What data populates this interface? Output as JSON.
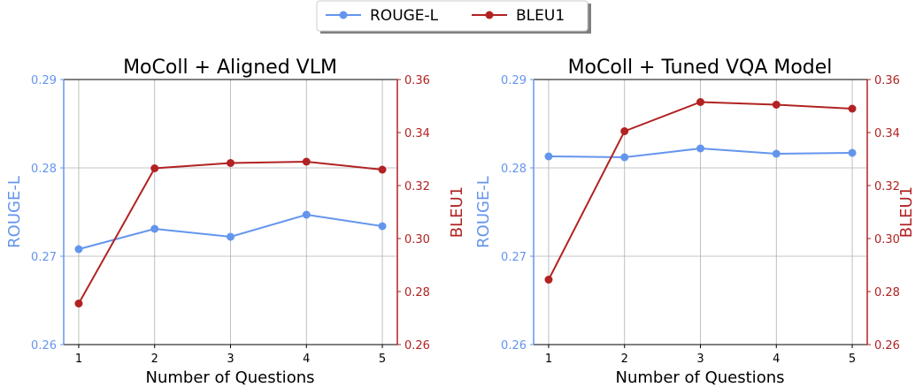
{
  "legend": {
    "entries": [
      {
        "label": "ROUGE-L",
        "color": "#6495ED"
      },
      {
        "label": "BLEU1",
        "color": "#B22222"
      }
    ]
  },
  "colors": {
    "rouge": "#6495ED",
    "bleu": "#B22222",
    "grid": "#b0b0b0"
  },
  "chart_data": [
    {
      "type": "line",
      "title": "MoColl + Aligned VLM",
      "xlabel": "Number of Questions",
      "ylabel_left": "ROUGE-L",
      "ylabel_right": "BLEU1",
      "x": [
        1,
        2,
        3,
        4,
        5
      ],
      "xticks": [
        "1",
        "2",
        "3",
        "4",
        "5"
      ],
      "ylim_left": [
        0.26,
        0.29
      ],
      "yticks_left": [
        "0.26",
        "0.27",
        "0.28",
        "0.29"
      ],
      "ylim_right": [
        0.26,
        0.36
      ],
      "yticks_right": [
        "0.26",
        "0.28",
        "0.30",
        "0.32",
        "0.34",
        "0.36"
      ],
      "grid": true,
      "series": [
        {
          "name": "ROUGE-L",
          "axis": "left",
          "values": [
            0.2708,
            0.2731,
            0.2722,
            0.2747,
            0.2734
          ]
        },
        {
          "name": "BLEU1",
          "axis": "right",
          "values": [
            0.2755,
            0.3265,
            0.3285,
            0.329,
            0.326
          ]
        }
      ]
    },
    {
      "type": "line",
      "title": "MoColl + Tuned VQA Model",
      "xlabel": "Number of Questions",
      "ylabel_left": "ROUGE-L",
      "ylabel_right": "BLEU1",
      "x": [
        1,
        2,
        3,
        4,
        5
      ],
      "xticks": [
        "1",
        "2",
        "3",
        "4",
        "5"
      ],
      "ylim_left": [
        0.26,
        0.29
      ],
      "yticks_left": [
        "0.26",
        "0.27",
        "0.28",
        "0.29"
      ],
      "ylim_right": [
        0.26,
        0.36
      ],
      "yticks_right": [
        "0.26",
        "0.28",
        "0.30",
        "0.32",
        "0.34",
        "0.36"
      ],
      "grid": true,
      "series": [
        {
          "name": "ROUGE-L",
          "axis": "left",
          "values": [
            0.2813,
            0.2812,
            0.2822,
            0.2816,
            0.2817
          ]
        },
        {
          "name": "BLEU1",
          "axis": "right",
          "values": [
            0.2845,
            0.3405,
            0.3515,
            0.3505,
            0.349
          ]
        }
      ]
    }
  ]
}
